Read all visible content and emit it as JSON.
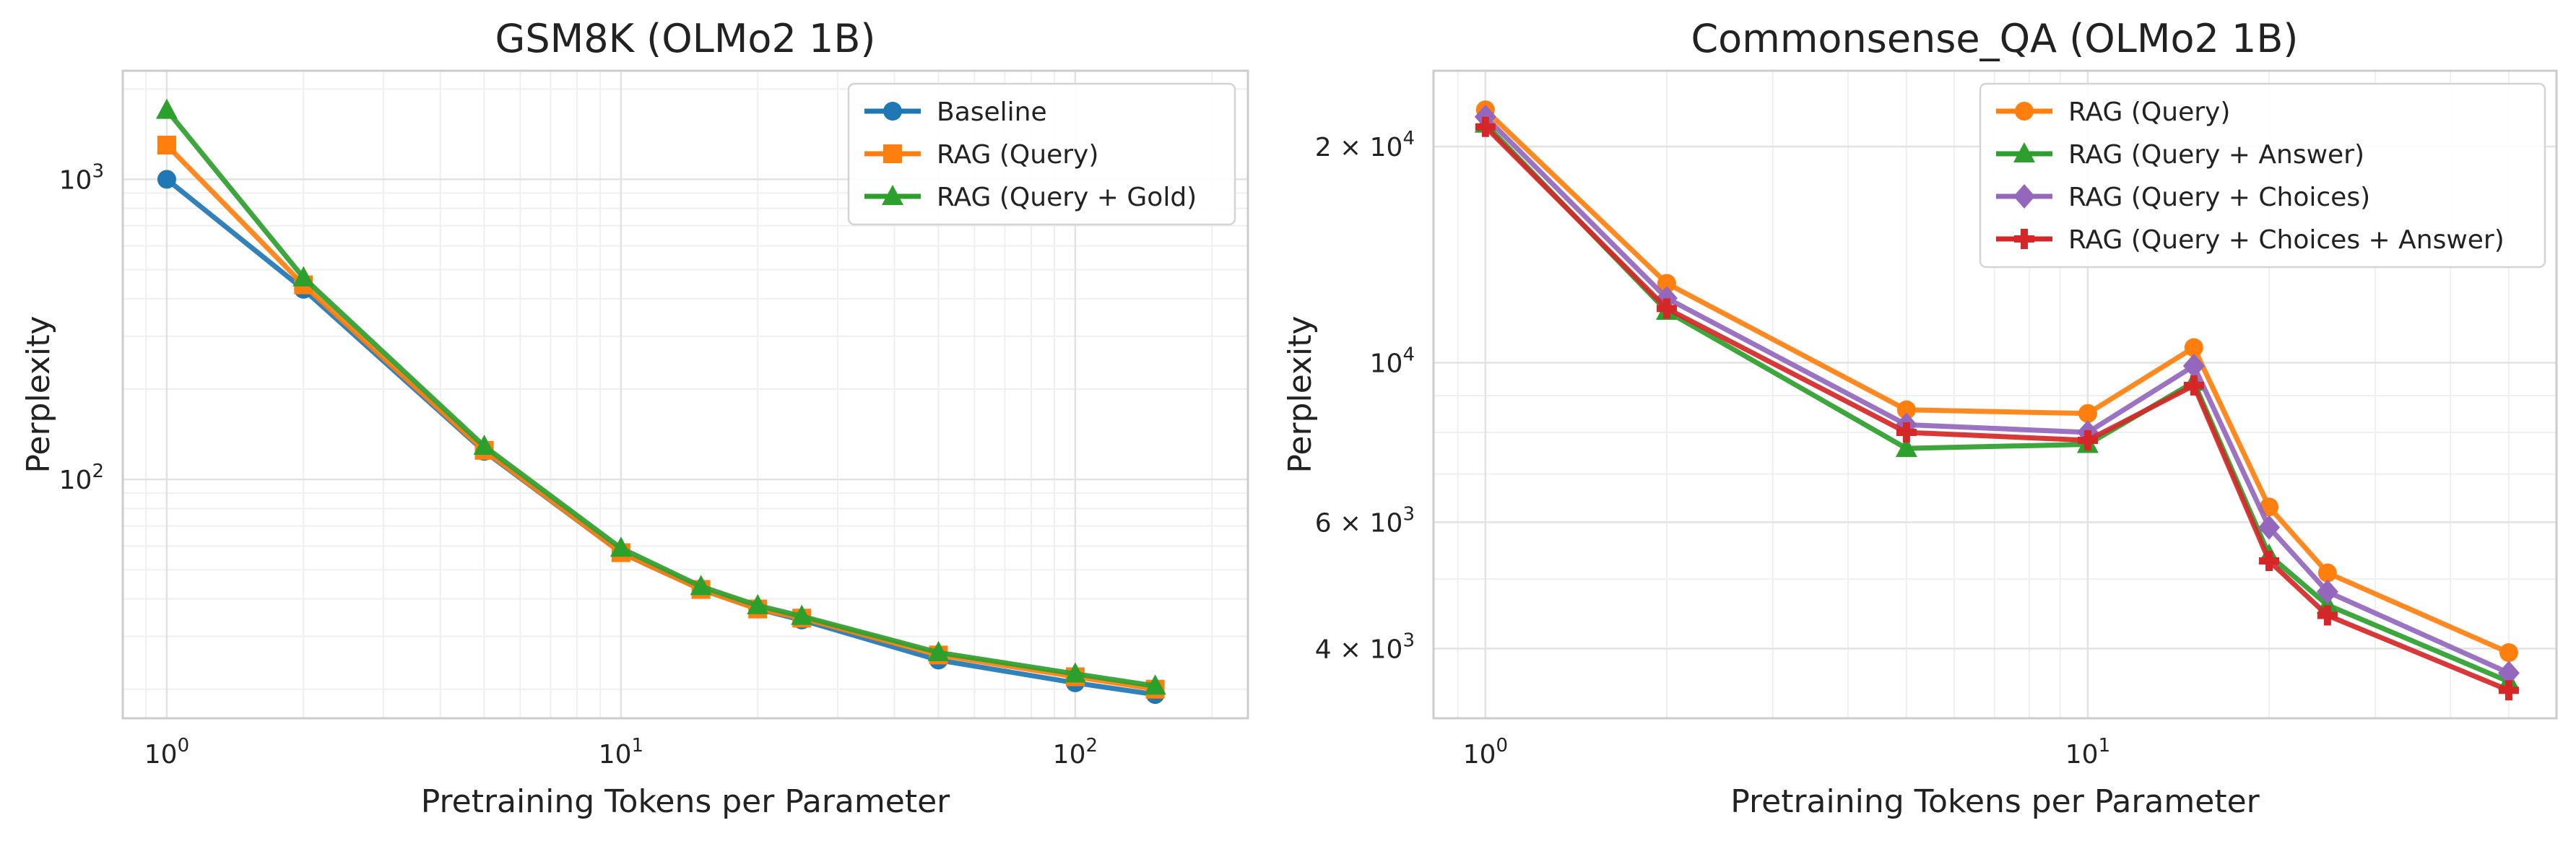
{
  "chart_data": [
    {
      "type": "line",
      "title": "GSM8K (OLMo2 1B)",
      "xlabel": "Pretraining Tokens per Parameter",
      "ylabel": "Perplexity",
      "xscale": "log",
      "yscale": "log",
      "xlim": [
        0.8,
        240
      ],
      "ylim": [
        16,
        2300
      ],
      "xticks": [
        {
          "value": 1,
          "base": "10",
          "exp": "0"
        },
        {
          "value": 10,
          "base": "10",
          "exp": "1"
        },
        {
          "value": 100,
          "base": "10",
          "exp": "2"
        }
      ],
      "yticks": [
        {
          "value": 100,
          "base": "10",
          "exp": "2"
        },
        {
          "value": 1000,
          "base": "10",
          "exp": "3"
        }
      ],
      "grid": true,
      "legend_position": "upper-right",
      "x": [
        1,
        2,
        5,
        10,
        15,
        20,
        25,
        50,
        100,
        150
      ],
      "series": [
        {
          "name": "Baseline",
          "color": "#1f77b4",
          "marker": "circle",
          "values": [
            1000,
            430,
            124,
            57,
            43,
            37,
            34,
            25,
            21,
            19.2
          ]
        },
        {
          "name": "RAG (Query)",
          "color": "#ff7f0e",
          "marker": "square",
          "values": [
            1300,
            445,
            125,
            57,
            43,
            37,
            34.5,
            26,
            22,
            20
          ]
        },
        {
          "name": "RAG (Query + Gold)",
          "color": "#2ca02c",
          "marker": "triangle",
          "values": [
            1700,
            470,
            129,
            59,
            44,
            38,
            35,
            26.5,
            22.5,
            20.5
          ]
        }
      ]
    },
    {
      "type": "line",
      "title": "Commonsense_QA (OLMo2 1B)",
      "xlabel": "Pretraining Tokens per Parameter",
      "ylabel": "Perplexity",
      "xscale": "log",
      "yscale": "log",
      "xlim": [
        0.82,
        60
      ],
      "ylim": [
        3200,
        25500
      ],
      "xticks": [
        {
          "value": 1,
          "base": "10",
          "exp": "0"
        },
        {
          "value": 10,
          "base": "10",
          "exp": "1"
        }
      ],
      "yticks": [
        {
          "value": 4000,
          "base": "4 × 10",
          "exp": "3"
        },
        {
          "value": 6000,
          "base": "6 × 10",
          "exp": "3"
        },
        {
          "value": 10000,
          "base": "10",
          "exp": "4"
        },
        {
          "value": 20000,
          "base": "2 × 10",
          "exp": "4"
        }
      ],
      "grid": true,
      "legend_position": "upper-right",
      "x": [
        1,
        2,
        5,
        10,
        15,
        20,
        25,
        50
      ],
      "series": [
        {
          "name": "RAG (Query)",
          "color": "#ff7f0e",
          "marker": "circle",
          "values": [
            22500,
            12900,
            8600,
            8500,
            10500,
            6300,
            5100,
            3950
          ]
        },
        {
          "name": "RAG (Query + Answer)",
          "color": "#2ca02c",
          "marker": "triangle",
          "values": [
            21500,
            11800,
            7600,
            7700,
            9400,
            5400,
            4600,
            3600
          ]
        },
        {
          "name": "RAG (Query + Choices)",
          "color": "#9467bd",
          "marker": "diamond",
          "values": [
            22000,
            12300,
            8200,
            8000,
            9900,
            5900,
            4800,
            3700
          ]
        },
        {
          "name": "RAG (Query + Choices + Answer)",
          "color": "#d62728",
          "marker": "plus",
          "values": [
            21300,
            11900,
            8000,
            7800,
            9300,
            5300,
            4450,
            3500
          ]
        }
      ]
    }
  ]
}
